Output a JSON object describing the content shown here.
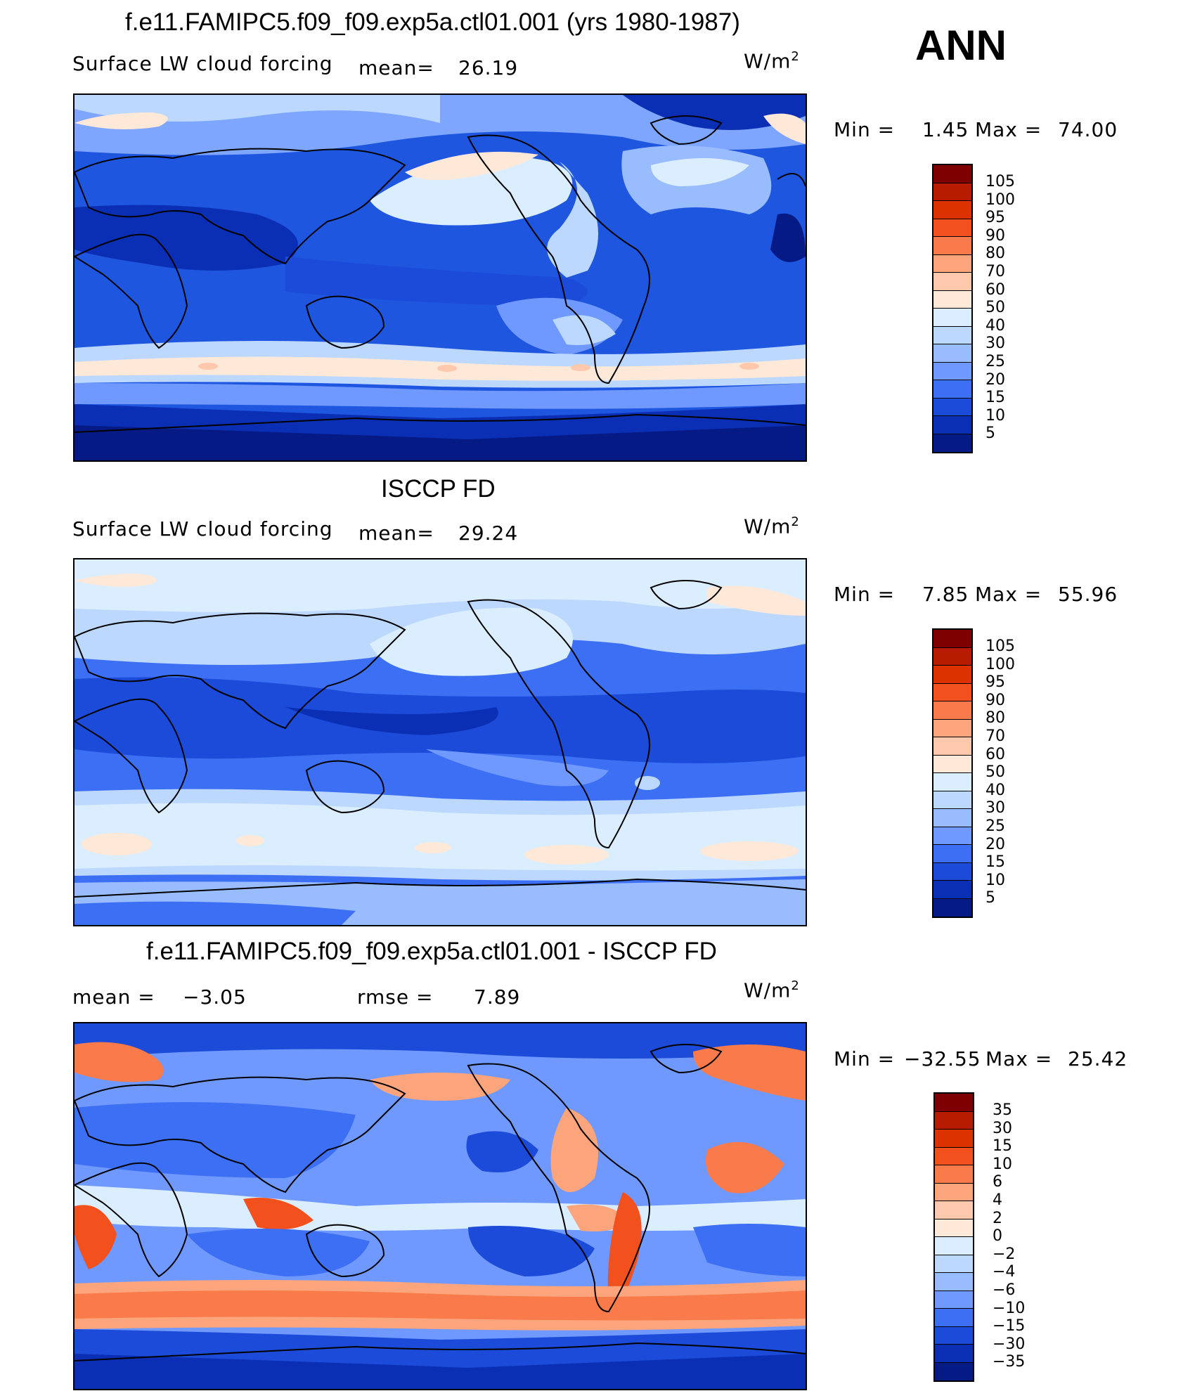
{
  "season": "ANN",
  "panels": [
    {
      "title": "f.e11.FAMIPC5.f09_f09.exp5a.ctl01.001 (yrs 1980-1987)",
      "variable": "Surface LW cloud forcing",
      "mean_label": "mean=",
      "mean_value": "26.19",
      "units": "W/m",
      "units_exp": "2",
      "min_label": "Min  =",
      "min_value": "1.45",
      "max_label": "Max  =",
      "max_value": "74.00",
      "colorbar_labels": [
        "105",
        "100",
        "95",
        "90",
        "80",
        "70",
        "60",
        "50",
        "40",
        "30",
        "25",
        "20",
        "15",
        "10",
        "5"
      ],
      "colorbar_colors": [
        "#7e0000",
        "#b81c00",
        "#dc3200",
        "#f2501c",
        "#f97a4a",
        "#fca57c",
        "#fec8ac",
        "#fee8d8",
        "#dbeeff",
        "#bcd8ff",
        "#99bcff",
        "#6f99ff",
        "#3c6ff4",
        "#1b4bd8",
        "#0b2fb4",
        "#061a86"
      ]
    },
    {
      "title": "ISCCP FD",
      "variable": "Surface LW cloud forcing",
      "mean_label": "mean=",
      "mean_value": "29.24",
      "units": "W/m",
      "units_exp": "2",
      "min_label": "Min  =",
      "min_value": "7.85",
      "max_label": "Max  =",
      "max_value": "55.96",
      "colorbar_labels": [
        "105",
        "100",
        "95",
        "90",
        "80",
        "70",
        "60",
        "50",
        "40",
        "30",
        "25",
        "20",
        "15",
        "10",
        "5"
      ],
      "colorbar_colors": [
        "#7e0000",
        "#b81c00",
        "#dc3200",
        "#f2501c",
        "#f97a4a",
        "#fca57c",
        "#fec8ac",
        "#fee8d8",
        "#dbeeff",
        "#bcd8ff",
        "#99bcff",
        "#6f99ff",
        "#3c6ff4",
        "#1b4bd8",
        "#0b2fb4",
        "#061a86"
      ]
    },
    {
      "title": "f.e11.FAMIPC5.f09_f09.exp5a.ctl01.001 - ISCCP FD",
      "mean_label": "mean  =",
      "mean_value": "−3.05",
      "rmse_label": "rmse  =",
      "rmse_value": "7.89",
      "units": "W/m",
      "units_exp": "2",
      "min_label": "Min  =",
      "min_value": "−32.55",
      "max_label": "Max  =",
      "max_value": "25.42",
      "colorbar_labels": [
        "35",
        "30",
        "15",
        "10",
        "6",
        "4",
        "2",
        "0",
        "−2",
        "−4",
        "−6",
        "−10",
        "−15",
        "−30",
        "−35"
      ],
      "colorbar_colors": [
        "#7e0000",
        "#b81c00",
        "#dc3200",
        "#f2501c",
        "#f97a4a",
        "#fca57c",
        "#fec8ac",
        "#fee8d8",
        "#dbeeff",
        "#bcd8ff",
        "#99bcff",
        "#6f99ff",
        "#3c6ff4",
        "#1b4bd8",
        "#0b2fb4",
        "#061a86"
      ]
    }
  ]
}
